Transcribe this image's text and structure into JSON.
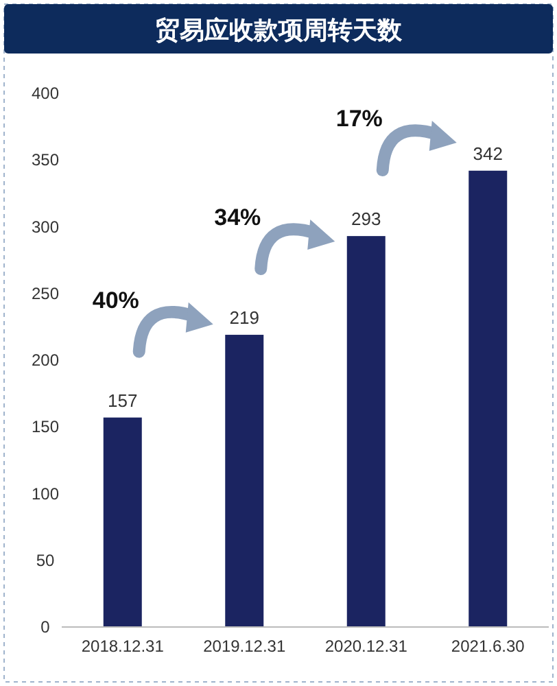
{
  "chart_data": {
    "type": "bar",
    "title": "贸易应收款项周转天数",
    "categories": [
      "2018.12.31",
      "2019.12.31",
      "2020.12.31",
      "2021.6.30"
    ],
    "values": [
      157,
      219,
      293,
      342
    ],
    "color": "#1b2461",
    "ylim": [
      0,
      400
    ],
    "yticks": [
      0,
      50,
      100,
      150,
      200,
      250,
      300,
      350,
      400
    ],
    "data_labels": true,
    "annotations": [
      "40%",
      "34%",
      "17%"
    ]
  }
}
